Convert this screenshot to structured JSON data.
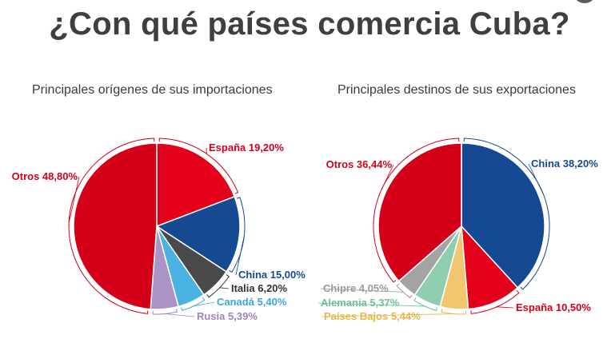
{
  "title": "¿Con qué países comercia Cuba?",
  "chart_data": [
    {
      "type": "pie",
      "title": "Principales orígenes de sus importaciones",
      "slices": [
        {
          "name": "España",
          "value": 19.2,
          "label": "España 19,20%",
          "color": "#e3001b",
          "label_color": "#d4001a"
        },
        {
          "name": "China",
          "value": 15.0,
          "label": "China 15,00%",
          "color": "#154a93",
          "label_color": "#154a93"
        },
        {
          "name": "Italia",
          "value": 6.2,
          "label": "Italia 6,20%",
          "color": "#4a4a4a",
          "label_color": "#333333"
        },
        {
          "name": "Canadá",
          "value": 5.4,
          "label": "Canadá 5,40%",
          "color": "#4ab2e0",
          "label_color": "#3aa6d8"
        },
        {
          "name": "Rusia",
          "value": 5.39,
          "label": "Rusia 5,39%",
          "color": "#ab93c8",
          "label_color": "#9c84c0"
        },
        {
          "name": "Otros",
          "value": 48.8,
          "label": "Otros 48,80%",
          "color": "#d4001a",
          "label_color": "#d4001a"
        }
      ]
    },
    {
      "type": "pie",
      "title": "Principales destinos de sus exportaciones",
      "slices": [
        {
          "name": "China",
          "value": 38.2,
          "label": "China 38,20%",
          "color": "#154a93",
          "label_color": "#154a93"
        },
        {
          "name": "España",
          "value": 10.5,
          "label": "España 10,50%",
          "color": "#e3001b",
          "label_color": "#d4001a"
        },
        {
          "name": "Países Bajos",
          "value": 5.44,
          "label": "Países Bajos 5,44%",
          "color": "#f2c66e",
          "label_color": "#e8b54a"
        },
        {
          "name": "Alemania",
          "value": 5.37,
          "label": "Alemania 5,37%",
          "color": "#8fcfb0",
          "label_color": "#6cbf98"
        },
        {
          "name": "Chipre",
          "value": 4.05,
          "label": "Chipre 4,05%",
          "color": "#a3a3a3",
          "label_color": "#9a9a9a"
        },
        {
          "name": "Otros",
          "value": 36.44,
          "label": "Otros 36,44%",
          "color": "#d4001a",
          "label_color": "#d4001a"
        }
      ]
    }
  ]
}
